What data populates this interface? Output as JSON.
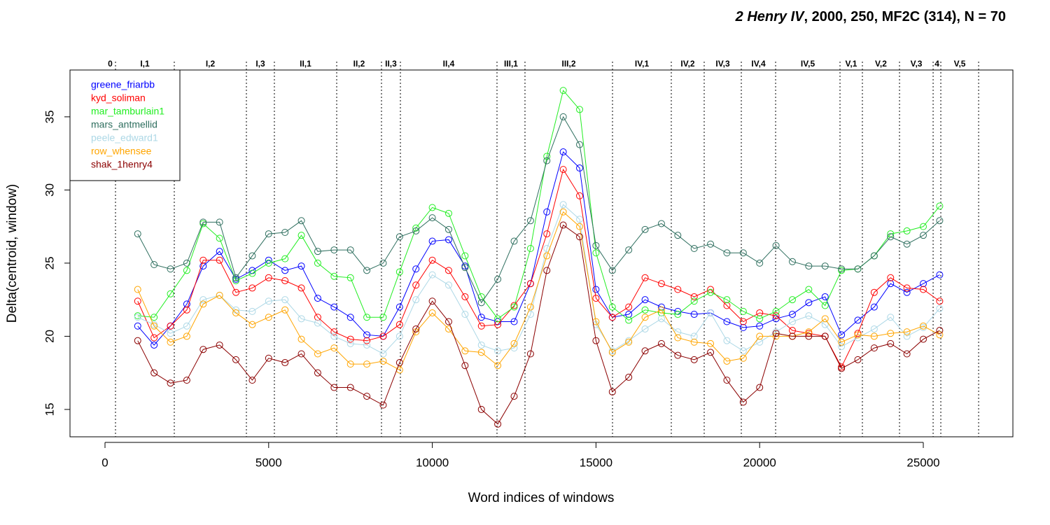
{
  "chart_data": {
    "type": "line",
    "title": {
      "work": "2 Henry IV",
      "rest": ", 2000, 250, MF2C (314), N = 70"
    },
    "x_label": "Word indices of windows",
    "y_label": "Delta(centroid, window)",
    "xlim": [
      -1069,
      27737
    ],
    "ylim": [
      13.13,
      38.2
    ],
    "xticks": [
      0,
      5000,
      10000,
      15000,
      20000,
      25000
    ],
    "yticks": [
      15,
      20,
      25,
      30,
      35
    ],
    "legend": "top-left",
    "scene_boundaries": [
      0,
      321,
      2117,
      4320,
      5175,
      7079,
      8447,
      9025,
      11976,
      12831,
      15505,
      17301,
      18306,
      19440,
      20488,
      22455,
      23139,
      24273,
      25300,
      25535,
      26690
    ],
    "scene_labels": [
      "0",
      "I,1",
      "I,2",
      "I,3",
      "II,1",
      "II,2",
      "II,3",
      "II,4",
      "III,1",
      "III,2",
      "IV,1",
      "IV,2",
      "IV,3",
      "IV,4",
      "IV,5",
      "V,1",
      "V,2",
      "V,3",
      "4",
      "V,5"
    ],
    "x": [
      1000,
      1500,
      2000,
      2500,
      3000,
      3500,
      4000,
      4500,
      5000,
      5500,
      6000,
      6500,
      7000,
      7500,
      8000,
      8500,
      9000,
      9500,
      10000,
      10500,
      11000,
      11500,
      12000,
      12500,
      13000,
      13500,
      14000,
      14500,
      15000,
      15500,
      16000,
      16500,
      17000,
      17500,
      18000,
      18500,
      19000,
      19500,
      20000,
      20500,
      21000,
      21500,
      22000,
      22500,
      23000,
      23500,
      24000,
      24500,
      25000,
      25500
    ],
    "series": [
      {
        "name": "greene_friarbb",
        "color": "#0000ff",
        "values": [
          20.7,
          19.4,
          20.7,
          22.2,
          24.8,
          25.8,
          23.9,
          24.5,
          25.2,
          24.5,
          24.8,
          22.6,
          22.0,
          21.3,
          20.1,
          20.0,
          22.0,
          24.6,
          26.5,
          26.6,
          24.8,
          21.3,
          21.0,
          21.0,
          23.6,
          28.5,
          32.6,
          31.5,
          23.2,
          21.3,
          21.5,
          22.5,
          22.0,
          21.7,
          21.5,
          21.6,
          21.0,
          20.6,
          20.7,
          21.2,
          21.5,
          22.3,
          22.7,
          20.1,
          21.1,
          22.0,
          23.6,
          23.0,
          23.6,
          24.2
        ]
      },
      {
        "name": "kyd_soliman",
        "color": "#ff0000",
        "values": [
          22.4,
          19.9,
          20.7,
          21.8,
          25.2,
          25.2,
          23.0,
          23.3,
          24.0,
          23.8,
          23.3,
          21.3,
          20.3,
          19.8,
          19.7,
          20.0,
          20.8,
          23.5,
          25.2,
          24.5,
          22.7,
          20.7,
          20.8,
          22.1,
          23.6,
          27.0,
          31.4,
          29.6,
          22.6,
          21.3,
          22.0,
          24.0,
          23.6,
          23.2,
          22.7,
          23.2,
          22.1,
          21.0,
          21.6,
          21.4,
          20.4,
          20.2,
          20.0,
          17.9,
          20.2,
          23.0,
          24.0,
          23.3,
          23.2,
          22.4
        ]
      },
      {
        "name": "mar_tamburlain1",
        "color": "#22ee22",
        "values": [
          21.4,
          21.3,
          22.9,
          24.5,
          27.7,
          26.7,
          23.8,
          24.3,
          25.0,
          25.3,
          26.9,
          25.0,
          24.1,
          24.0,
          21.3,
          21.3,
          24.4,
          27.4,
          28.8,
          28.4,
          25.5,
          22.7,
          21.2,
          22.0,
          26.0,
          32.3,
          36.8,
          35.5,
          25.7,
          22.0,
          21.1,
          21.8,
          21.6,
          21.5,
          22.4,
          23.0,
          22.5,
          21.7,
          21.2,
          21.7,
          22.5,
          23.2,
          22.1,
          24.5,
          24.6,
          25.5,
          27.0,
          27.2,
          27.5,
          28.9
        ]
      },
      {
        "name": "mars_antmellid",
        "color": "#2f6f5f",
        "values": [
          27.0,
          24.9,
          24.6,
          25.0,
          27.8,
          27.8,
          24.0,
          25.5,
          27.0,
          27.1,
          27.9,
          25.8,
          25.9,
          25.9,
          24.5,
          25.0,
          26.8,
          27.2,
          28.1,
          27.3,
          24.7,
          22.3,
          23.9,
          26.5,
          27.9,
          32.0,
          35.0,
          33.1,
          26.2,
          24.5,
          25.9,
          27.3,
          27.7,
          26.9,
          26.0,
          26.3,
          25.7,
          25.7,
          25.0,
          26.2,
          25.1,
          24.8,
          24.8,
          24.6,
          24.6,
          25.5,
          26.8,
          26.3,
          26.9,
          27.9
        ]
      },
      {
        "name": "peele_edward1",
        "color": "#add8e6",
        "values": [
          21.3,
          20.8,
          20.2,
          20.7,
          22.5,
          22.8,
          21.8,
          21.7,
          22.4,
          22.5,
          21.2,
          20.9,
          20.0,
          19.5,
          19.4,
          18.8,
          20.0,
          22.5,
          24.2,
          23.5,
          21.5,
          19.4,
          19.0,
          19.2,
          21.5,
          26.0,
          29.0,
          28.0,
          20.8,
          19.0,
          19.7,
          20.5,
          21.2,
          20.3,
          20.0,
          21.6,
          19.7,
          19.0,
          19.6,
          20.3,
          21.0,
          21.4,
          20.8,
          19.3,
          19.9,
          20.5,
          21.3,
          20.0,
          20.6,
          21.9
        ]
      },
      {
        "name": "row_whensee",
        "color": "#ffa500",
        "values": [
          23.2,
          20.7,
          19.6,
          20.0,
          22.2,
          22.8,
          21.6,
          20.8,
          21.3,
          21.8,
          19.8,
          18.8,
          19.2,
          18.1,
          18.1,
          18.3,
          17.7,
          20.3,
          21.6,
          20.5,
          19.0,
          18.9,
          18.0,
          19.5,
          22.0,
          25.5,
          28.5,
          27.5,
          21.0,
          18.9,
          19.6,
          21.3,
          21.8,
          19.9,
          19.6,
          19.5,
          18.3,
          18.5,
          20.0,
          20.0,
          20.0,
          20.3,
          21.2,
          19.6,
          20.1,
          20.0,
          20.2,
          20.3,
          20.7,
          20.1
        ]
      },
      {
        "name": "shak_1henry4",
        "color": "#8b0000",
        "values": [
          19.7,
          17.5,
          16.8,
          17.0,
          19.1,
          19.4,
          18.4,
          17.0,
          18.5,
          18.2,
          18.8,
          17.5,
          16.5,
          16.5,
          15.9,
          15.3,
          18.2,
          20.5,
          22.4,
          21.0,
          18.0,
          15.0,
          14.0,
          15.9,
          18.8,
          24.5,
          27.6,
          26.8,
          19.7,
          16.2,
          17.2,
          19.0,
          19.5,
          18.7,
          18.4,
          18.9,
          17.0,
          15.5,
          16.5,
          20.2,
          20.0,
          20.0,
          20.0,
          17.8,
          18.4,
          19.2,
          19.5,
          18.8,
          19.8,
          20.4
        ]
      }
    ]
  }
}
